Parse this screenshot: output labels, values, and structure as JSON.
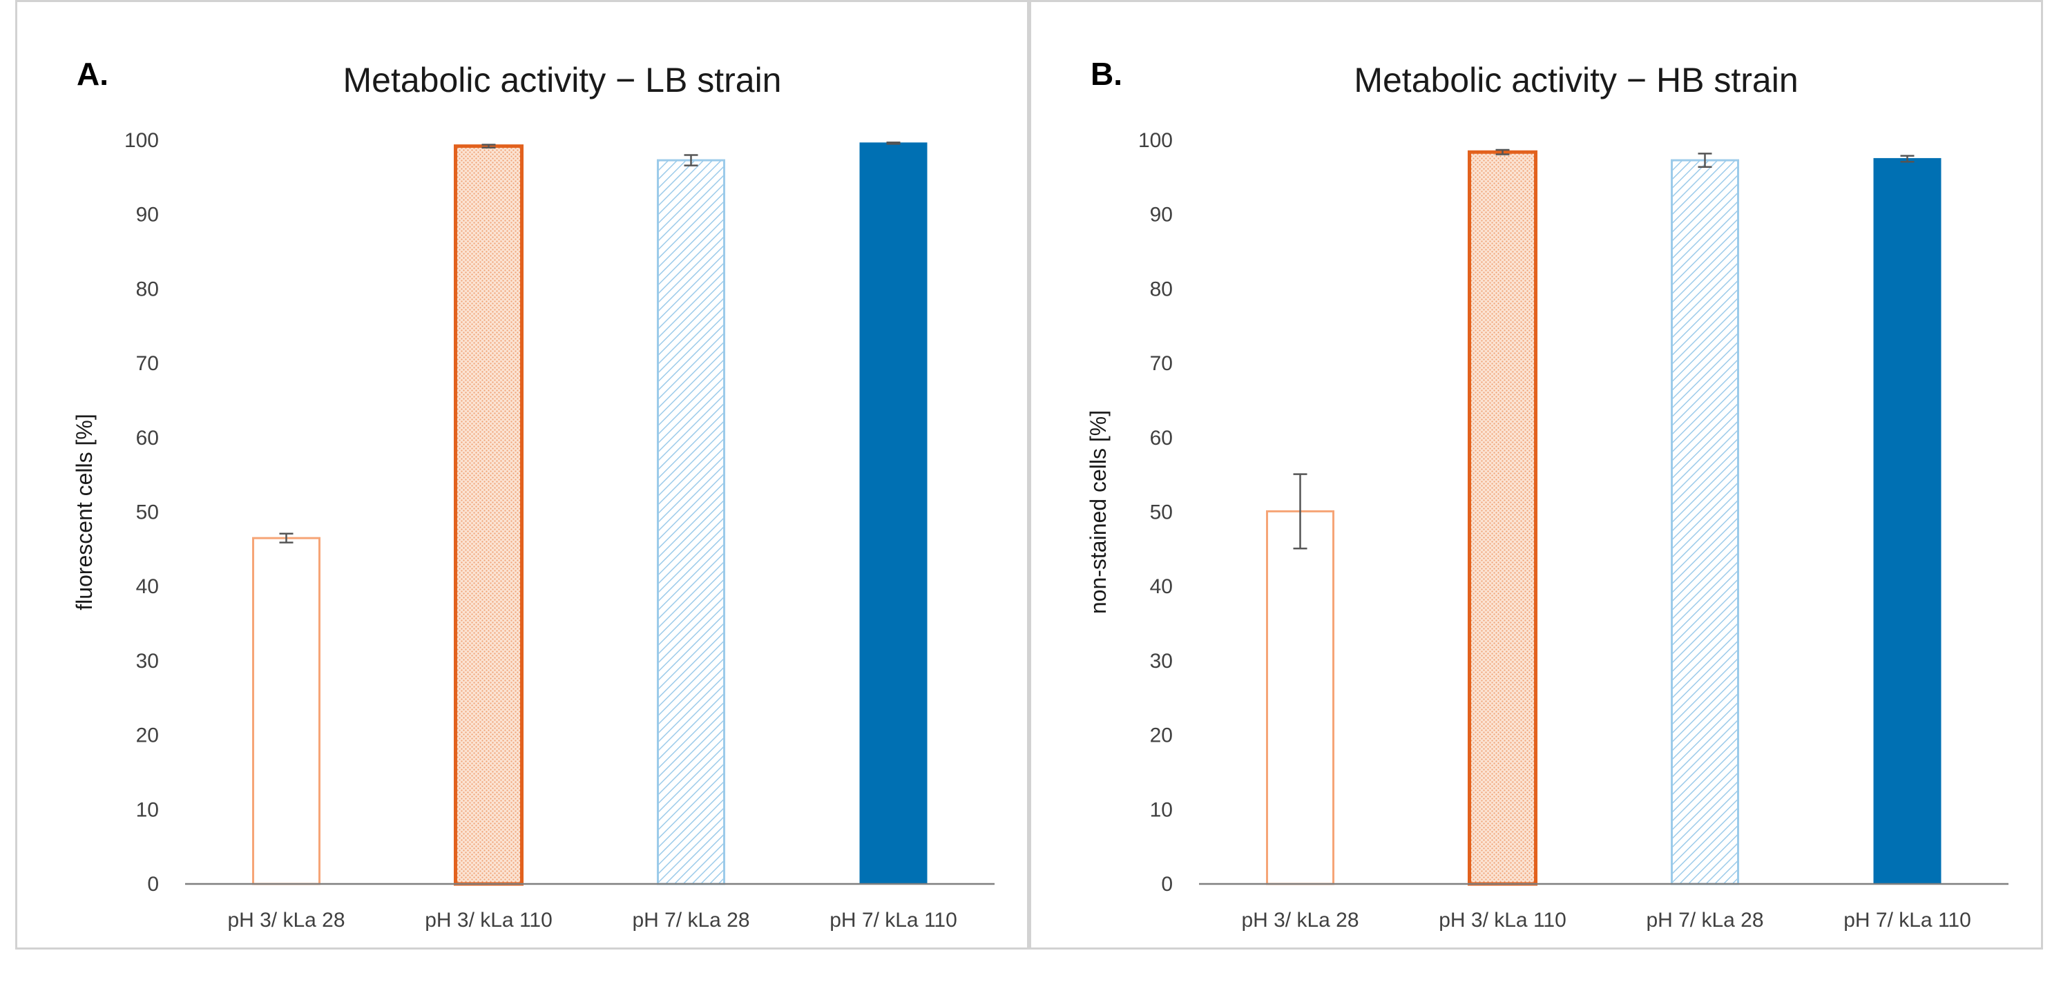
{
  "colors": {
    "light_orange": "#f6a577",
    "dark_orange": "#e2611d",
    "light_blue": "#9ccbea",
    "dark_blue": "#0070b3",
    "axis": "#7f7f7f",
    "error_bar": "#555555"
  },
  "chart_data": [
    {
      "type": "bar",
      "panel_letter": "A.",
      "title": "Metabolic activity − LB strain",
      "xlabel": "",
      "ylabel": "fluorescent cells [%]",
      "ylim": [
        0,
        100
      ],
      "yticks": [
        0,
        10,
        20,
        30,
        40,
        50,
        60,
        70,
        80,
        90,
        100
      ],
      "categories": [
        "pH 3/ kLa 28",
        "pH 3/ kLa 110",
        "pH 7/ kLa 28",
        "pH 7/ kLa 110"
      ],
      "values": [
        46.5,
        99.2,
        97.3,
        99.6
      ],
      "errors": [
        0.6,
        0.2,
        0.7,
        0.1
      ],
      "styles": [
        "hollow-light-orange",
        "dotted-dark-orange",
        "hatched-light-blue",
        "solid-dark-blue"
      ],
      "grid": false
    },
    {
      "type": "bar",
      "panel_letter": "B.",
      "title": "Metabolic activity − HB strain",
      "xlabel": "",
      "ylabel": "non-stained cells [%]",
      "ylim": [
        0,
        100
      ],
      "yticks": [
        0,
        10,
        20,
        30,
        40,
        50,
        60,
        70,
        80,
        90,
        100
      ],
      "categories": [
        "pH 3/ kLa 28",
        "pH 3/ kLa 110",
        "pH 7/ kLa 28",
        "pH 7/ kLa 110"
      ],
      "values": [
        50.1,
        98.4,
        97.3,
        97.5
      ],
      "errors": [
        5.0,
        0.3,
        0.9,
        0.4
      ],
      "styles": [
        "hollow-light-orange",
        "dotted-dark-orange",
        "hatched-light-blue",
        "solid-dark-blue"
      ],
      "grid": false
    }
  ]
}
